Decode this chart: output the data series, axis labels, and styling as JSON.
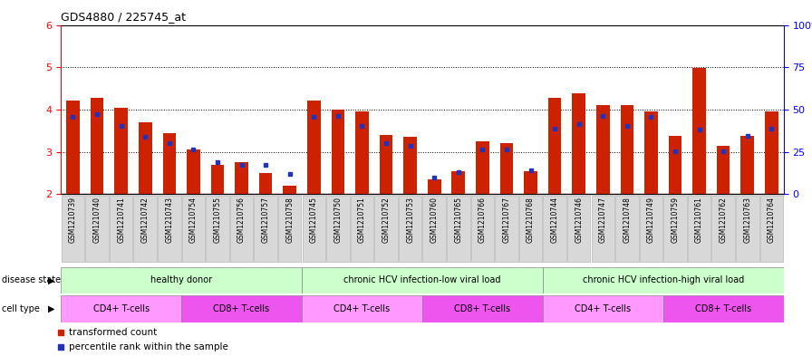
{
  "title": "GDS4880 / 225745_at",
  "samples": [
    "GSM1210739",
    "GSM1210740",
    "GSM1210741",
    "GSM1210742",
    "GSM1210743",
    "GSM1210754",
    "GSM1210755",
    "GSM1210756",
    "GSM1210757",
    "GSM1210758",
    "GSM1210745",
    "GSM1210750",
    "GSM1210751",
    "GSM1210752",
    "GSM1210753",
    "GSM1210760",
    "GSM1210765",
    "GSM1210766",
    "GSM1210767",
    "GSM1210768",
    "GSM1210744",
    "GSM1210746",
    "GSM1210747",
    "GSM1210748",
    "GSM1210749",
    "GSM1210759",
    "GSM1210761",
    "GSM1210762",
    "GSM1210763",
    "GSM1210764"
  ],
  "red_values": [
    4.22,
    4.28,
    4.05,
    3.7,
    3.45,
    3.05,
    2.7,
    2.75,
    2.5,
    2.2,
    4.22,
    4.0,
    3.95,
    3.4,
    3.35,
    2.35,
    2.55,
    3.25,
    3.2,
    2.55,
    4.28,
    4.38,
    4.1,
    4.1,
    3.95,
    3.38,
    4.98,
    3.15,
    3.38,
    3.95
  ],
  "blue_values": [
    3.82,
    3.88,
    3.62,
    3.36,
    3.2,
    3.06,
    2.75,
    2.68,
    2.68,
    2.48,
    3.82,
    3.84,
    3.62,
    3.2,
    3.14,
    2.38,
    2.52,
    3.06,
    3.06,
    2.56,
    3.54,
    3.66,
    3.84,
    3.62,
    3.82,
    3.02,
    3.52,
    3.02,
    3.38,
    3.54
  ],
  "ylim": [
    2,
    6
  ],
  "bar_color": "#cc2200",
  "blue_color": "#2233bb",
  "bar_bottom": 2.0,
  "tick_bg": "#d8d8d8",
  "disease_groups": [
    {
      "start": 0,
      "end": 9,
      "label": "healthy donor",
      "color": "#ccffcc"
    },
    {
      "start": 10,
      "end": 19,
      "label": "chronic HCV infection-low viral load",
      "color": "#ccffcc"
    },
    {
      "start": 20,
      "end": 29,
      "label": "chronic HCV infection-high viral load",
      "color": "#ccffcc"
    }
  ],
  "cell_groups": [
    {
      "start": 0,
      "end": 4,
      "label": "CD4+ T-cells",
      "color": "#ff99ff"
    },
    {
      "start": 5,
      "end": 9,
      "label": "CD8+ T-cells",
      "color": "#ee55ee"
    },
    {
      "start": 10,
      "end": 14,
      "label": "CD4+ T-cells",
      "color": "#ff99ff"
    },
    {
      "start": 15,
      "end": 19,
      "label": "CD8+ T-cells",
      "color": "#ee55ee"
    },
    {
      "start": 20,
      "end": 24,
      "label": "CD4+ T-cells",
      "color": "#ff99ff"
    },
    {
      "start": 25,
      "end": 29,
      "label": "CD8+ T-cells",
      "color": "#ee55ee"
    }
  ]
}
